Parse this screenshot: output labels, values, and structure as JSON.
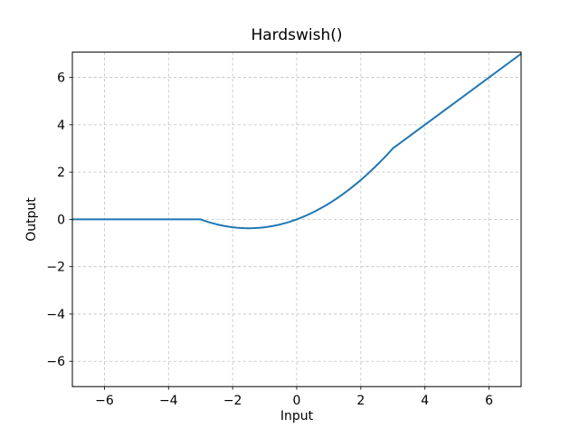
{
  "chart_data": {
    "type": "line",
    "title": "Hardswish()",
    "xlabel": "Input",
    "ylabel": "Output",
    "xlim": [
      -7,
      7
    ],
    "ylim": [
      -7.07,
      7.07
    ],
    "xticks": [
      -6,
      -4,
      -2,
      0,
      2,
      4,
      6
    ],
    "xtick_labels": [
      "−6",
      "−4",
      "−2",
      "0",
      "2",
      "4",
      "6"
    ],
    "yticks": [
      -6,
      -4,
      -2,
      0,
      2,
      4,
      6
    ],
    "ytick_labels": [
      "−6",
      "−4",
      "−2",
      "0",
      "2",
      "4",
      "6"
    ],
    "grid": true,
    "grid_color": "#c0c0c0",
    "spine_color": "#000000",
    "background_color": "#ffffff",
    "legend_position": "none",
    "series": [
      {
        "color": "#1f77b4",
        "line_width": 2,
        "x": [
          -7,
          -5,
          -3,
          -2.875,
          -2.75,
          -2.625,
          -2.5,
          -2.375,
          -2.25,
          -2.125,
          -2,
          -1.875,
          -1.75,
          -1.625,
          -1.5,
          -1.375,
          -1.25,
          -1.125,
          -1,
          -0.875,
          -0.75,
          -0.625,
          -0.5,
          -0.375,
          -0.25,
          -0.125,
          0,
          0.125,
          0.25,
          0.375,
          0.5,
          0.625,
          0.75,
          0.875,
          1,
          1.125,
          1.25,
          1.375,
          1.5,
          1.625,
          1.75,
          1.875,
          2,
          2.125,
          2.25,
          2.375,
          2.5,
          2.625,
          2.75,
          2.875,
          3,
          5,
          7
        ],
        "y": [
          0,
          0,
          0,
          -0.0599,
          -0.1146,
          -0.1641,
          -0.2083,
          -0.2474,
          -0.2813,
          -0.3099,
          -0.3333,
          -0.3516,
          -0.3646,
          -0.3724,
          -0.375,
          -0.3724,
          -0.3646,
          -0.3516,
          -0.3333,
          -0.3099,
          -0.2813,
          -0.2474,
          -0.2083,
          -0.1641,
          -0.1146,
          -0.0599,
          0,
          0.0651,
          0.1354,
          0.2109,
          0.2917,
          0.3776,
          0.4688,
          0.5651,
          0.6667,
          0.7734,
          0.8854,
          1.0026,
          1.125,
          1.2526,
          1.3854,
          1.5234,
          1.6667,
          1.8151,
          1.9688,
          2.1276,
          2.2917,
          2.4609,
          2.6354,
          2.8151,
          3,
          5,
          7
        ]
      }
    ]
  }
}
